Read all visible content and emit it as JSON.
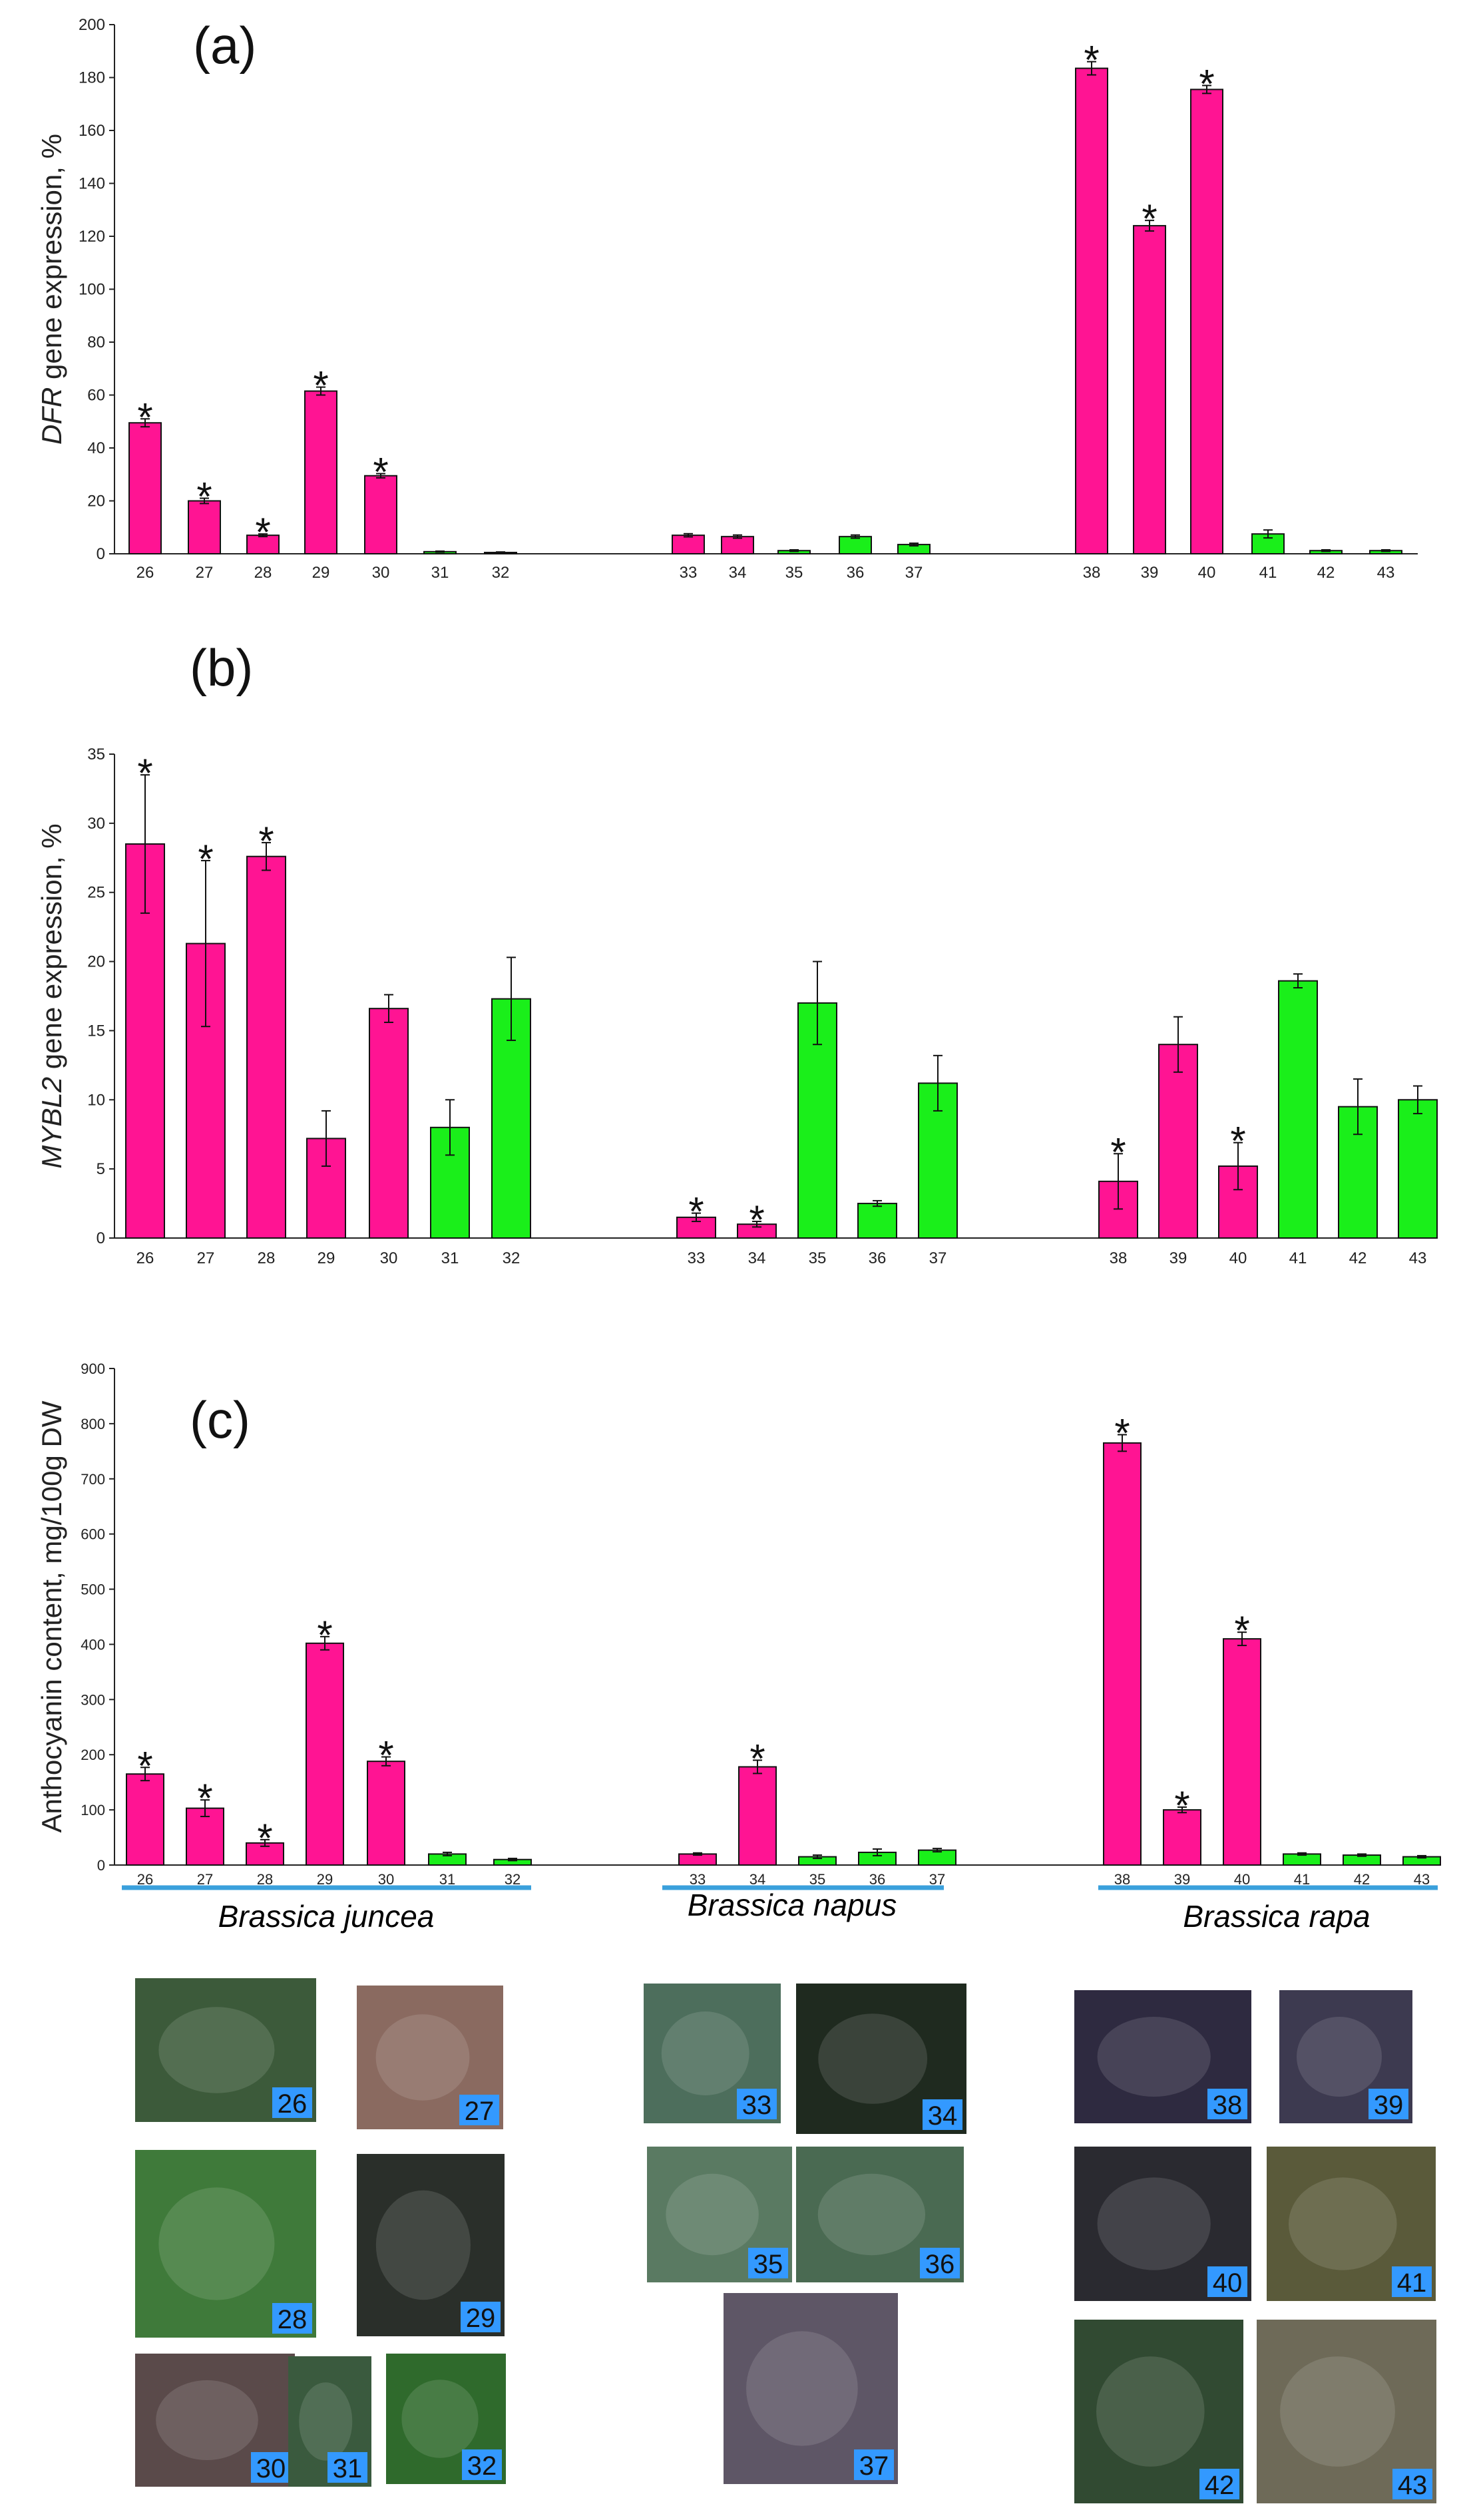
{
  "figure": {
    "species_labels": [
      "Brassica juncea",
      "Brassica napus",
      "Brassica rapa"
    ],
    "species_line_color": "#3aa0dc",
    "bar_colors": {
      "colored": "#ff1493",
      "green": "#1aef1a"
    },
    "photo_label_bg": "#3399ff"
  },
  "chart_data": [
    {
      "type": "bar",
      "panel": "(a)",
      "ylabel_italic": "DFR",
      "ylabel_rest": " gene expression, %",
      "ylim": [
        0,
        200
      ],
      "yticks": [
        0,
        20,
        40,
        60,
        80,
        100,
        120,
        140,
        160,
        180,
        200
      ],
      "categories": [
        "26",
        "27",
        "28",
        "29",
        "30",
        "31",
        "32",
        "33",
        "34",
        "35",
        "36",
        "37",
        "38",
        "39",
        "40",
        "41",
        "42",
        "43"
      ],
      "values": [
        49.5,
        20,
        7,
        61.5,
        29.5,
        0.8,
        0.5,
        7,
        6.5,
        1.2,
        6.5,
        3.5,
        183.5,
        124,
        175.5,
        7.5,
        1.2,
        1.2
      ],
      "errors": [
        1.5,
        1,
        0.5,
        1.5,
        0.8,
        0.2,
        0.2,
        0.6,
        0.6,
        0.3,
        0.6,
        0.5,
        2.5,
        2,
        1.5,
        1.5,
        0.3,
        0.3
      ],
      "colored": [
        true,
        true,
        true,
        true,
        true,
        false,
        false,
        true,
        true,
        false,
        false,
        false,
        true,
        true,
        true,
        false,
        false,
        false
      ],
      "significant": [
        true,
        true,
        true,
        true,
        true,
        false,
        false,
        false,
        false,
        false,
        false,
        false,
        true,
        true,
        true,
        false,
        false,
        false
      ]
    },
    {
      "type": "bar",
      "panel": "(b)",
      "ylabel_italic": "MYBL2",
      "ylabel_rest": " gene expression, %",
      "ylim": [
        0,
        35
      ],
      "yticks": [
        0,
        5,
        10,
        15,
        20,
        25,
        30,
        35
      ],
      "categories": [
        "26",
        "27",
        "28",
        "29",
        "30",
        "31",
        "32",
        "33",
        "34",
        "35",
        "36",
        "37",
        "38",
        "39",
        "40",
        "41",
        "42",
        "43"
      ],
      "values": [
        28.5,
        21.3,
        27.6,
        7.2,
        16.6,
        8,
        17.3,
        1.5,
        1,
        17,
        2.5,
        11.2,
        4.1,
        14,
        5.2,
        18.6,
        9.5,
        10
      ],
      "errors": [
        5,
        6,
        1,
        2,
        1,
        2,
        3,
        0.3,
        0.2,
        3,
        0.2,
        2,
        2,
        2,
        1.7,
        0.5,
        2,
        1
      ],
      "colored": [
        true,
        true,
        true,
        true,
        true,
        false,
        false,
        true,
        true,
        false,
        false,
        false,
        true,
        true,
        true,
        false,
        false,
        false
      ],
      "significant": [
        true,
        true,
        true,
        false,
        false,
        false,
        false,
        true,
        true,
        false,
        false,
        false,
        true,
        false,
        true,
        false,
        false,
        false
      ]
    },
    {
      "type": "bar",
      "panel": "(c)",
      "ylabel_italic": "",
      "ylabel_rest": "Anthocyanin content, mg/100g DW",
      "ylim": [
        0,
        900
      ],
      "yticks": [
        0,
        100,
        200,
        300,
        400,
        500,
        600,
        700,
        800,
        900
      ],
      "categories": [
        "26",
        "27",
        "28",
        "29",
        "30",
        "31",
        "32",
        "33",
        "34",
        "35",
        "36",
        "37",
        "38",
        "39",
        "40",
        "41",
        "42",
        "43"
      ],
      "values": [
        165,
        103,
        40,
        402,
        188,
        20,
        10,
        20,
        178,
        15,
        23,
        27,
        765,
        100,
        410,
        20,
        18,
        15
      ],
      "errors": [
        12,
        15,
        6,
        12,
        8,
        3,
        2,
        2,
        12,
        3,
        6,
        3,
        15,
        5,
        12,
        2,
        2,
        2
      ],
      "colored": [
        true,
        true,
        true,
        true,
        true,
        false,
        false,
        true,
        true,
        false,
        false,
        false,
        true,
        true,
        true,
        false,
        false,
        false
      ],
      "significant": [
        true,
        true,
        true,
        true,
        true,
        false,
        false,
        false,
        true,
        false,
        false,
        false,
        true,
        true,
        true,
        false,
        false,
        false
      ]
    }
  ],
  "photos": [
    {
      "label": "26",
      "fill": "#3c5a3a"
    },
    {
      "label": "27",
      "fill": "#8a6a60"
    },
    {
      "label": "28",
      "fill": "#3f7a3a"
    },
    {
      "label": "29",
      "fill": "#2a2f2a"
    },
    {
      "label": "30",
      "fill": "#5a4a4a"
    },
    {
      "label": "31",
      "fill": "#3a5a3e"
    },
    {
      "label": "32",
      "fill": "#2f6a2c"
    },
    {
      "label": "33",
      "fill": "#4d6e5c"
    },
    {
      "label": "34",
      "fill": "#1f2a1f"
    },
    {
      "label": "35",
      "fill": "#5a7a62"
    },
    {
      "label": "36",
      "fill": "#4a6a52"
    },
    {
      "label": "37",
      "fill": "#5e5666"
    },
    {
      "label": "38",
      "fill": "#2e2a40"
    },
    {
      "label": "39",
      "fill": "#3d3a50"
    },
    {
      "label": "40",
      "fill": "#2a2a30"
    },
    {
      "label": "41",
      "fill": "#5a5a3a"
    },
    {
      "label": "42",
      "fill": "#314a32"
    },
    {
      "label": "43",
      "fill": "#6e6a58"
    }
  ]
}
